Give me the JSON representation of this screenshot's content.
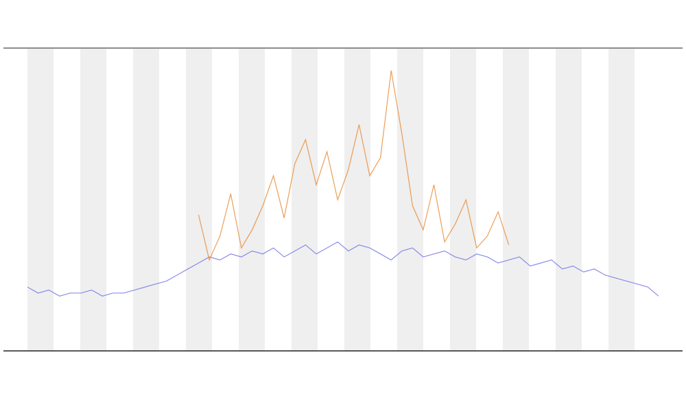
{
  "chart_data": {
    "type": "line",
    "ylim": [
      0,
      100
    ],
    "series": [
      {
        "color": "#6f6fe8",
        "values": [
          21,
          19,
          20,
          18,
          19,
          19,
          20,
          18,
          19,
          19,
          20,
          21,
          22,
          23,
          25,
          27,
          29,
          31,
          30,
          32,
          31,
          33,
          32,
          34,
          31,
          33,
          35,
          32,
          34,
          36,
          33,
          35,
          34,
          32,
          30,
          33,
          34,
          31,
          32,
          33,
          31,
          30,
          32,
          31,
          29,
          30,
          31,
          28,
          29,
          30,
          27,
          28,
          26,
          27,
          25,
          24,
          23,
          22,
          21,
          18
        ]
      },
      {
        "color": "#e8842a",
        "values": [
          null,
          null,
          null,
          null,
          null,
          null,
          null,
          null,
          null,
          null,
          null,
          null,
          null,
          null,
          null,
          null,
          45,
          30,
          38,
          52,
          34,
          40,
          48,
          58,
          44,
          62,
          70,
          55,
          66,
          50,
          60,
          75,
          58,
          64,
          93,
          72,
          48,
          40,
          55,
          36,
          42,
          50,
          34,
          38,
          46,
          35,
          null,
          null,
          null,
          null,
          null,
          null,
          null,
          null,
          null,
          null,
          null,
          null,
          null,
          null
        ]
      }
    ]
  }
}
